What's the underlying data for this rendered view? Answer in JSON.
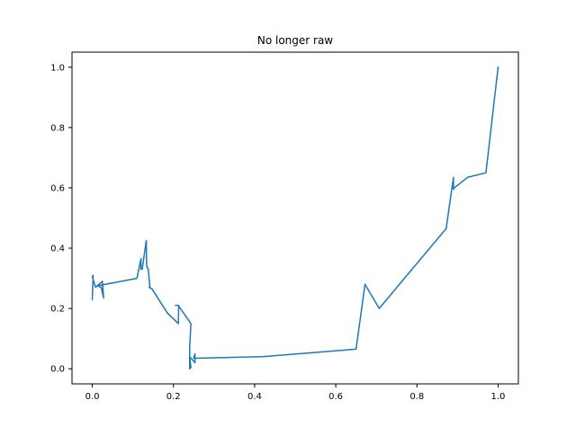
{
  "chart_data": {
    "type": "line",
    "title": "No longer raw",
    "xlabel": "",
    "ylabel": "",
    "xlim": [
      -0.05,
      1.05
    ],
    "ylim": [
      -0.05,
      1.05
    ],
    "grid": false,
    "line_color": "#1f77b4",
    "x_ticks": [
      {
        "value": 0.0,
        "label": "0.0"
      },
      {
        "value": 0.2,
        "label": "0.2"
      },
      {
        "value": 0.4,
        "label": "0.4"
      },
      {
        "value": 0.6,
        "label": "0.6"
      },
      {
        "value": 0.8,
        "label": "0.8"
      },
      {
        "value": 1.0,
        "label": "1.0"
      }
    ],
    "y_ticks": [
      {
        "value": 0.0,
        "label": "0.0"
      },
      {
        "value": 0.2,
        "label": "0.2"
      },
      {
        "value": 0.4,
        "label": "0.4"
      },
      {
        "value": 0.6,
        "label": "0.6"
      },
      {
        "value": 0.8,
        "label": "0.8"
      },
      {
        "value": 1.0,
        "label": "1.0"
      }
    ],
    "series": [
      {
        "x": [
          0.0,
          0.002,
          0.0,
          0.008,
          0.025,
          0.028,
          0.022,
          0.012,
          0.11,
          0.12,
          0.12,
          0.123,
          0.133,
          0.134,
          0.138,
          0.142,
          0.14,
          0.147,
          0.185,
          0.212,
          0.213,
          0.205,
          0.212,
          0.243,
          0.24,
          0.24,
          0.243,
          0.24,
          0.253,
          0.253,
          0.25,
          0.252,
          0.42,
          0.65,
          0.672,
          0.707,
          0.872,
          0.89,
          0.89,
          0.892,
          0.925,
          0.97,
          1.0
        ],
        "y": [
          0.23,
          0.31,
          0.305,
          0.27,
          0.29,
          0.235,
          0.27,
          0.275,
          0.3,
          0.365,
          0.33,
          0.33,
          0.425,
          0.34,
          0.33,
          0.27,
          0.27,
          0.265,
          0.185,
          0.15,
          0.21,
          0.21,
          0.21,
          0.15,
          0.07,
          0.0,
          0.005,
          0.04,
          0.02,
          0.05,
          0.035,
          0.035,
          0.04,
          0.065,
          0.28,
          0.2,
          0.465,
          0.635,
          0.595,
          0.6,
          0.635,
          0.65,
          1.0
        ]
      }
    ]
  }
}
